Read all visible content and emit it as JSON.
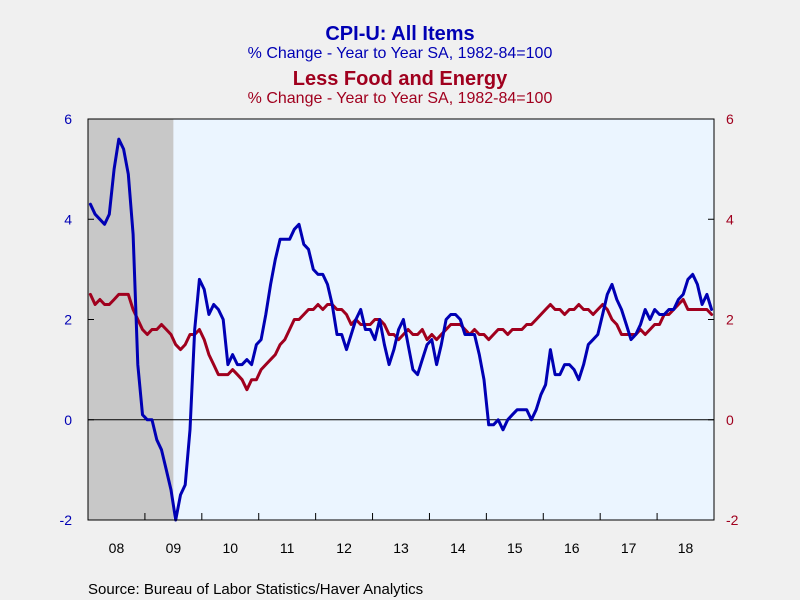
{
  "chart_data": {
    "type": "line",
    "titles": [
      {
        "text": "CPI-U: All Items",
        "color": "#0000b4"
      },
      {
        "text": "% Change - Year to Year    SA, 1982-84=100",
        "color": "#0000b4"
      },
      {
        "text": "Less Food and Energy",
        "color": "#a0001e"
      },
      {
        "text": "% Change - Year to Year    SA, 1982-84=100",
        "color": "#a0001e"
      }
    ],
    "ylim": [
      -2,
      6
    ],
    "y_ticks": [
      "-2",
      "0",
      "2",
      "4",
      "6"
    ],
    "y_ticks_right": [
      "-2",
      "0",
      "2",
      "4",
      "6"
    ],
    "x_labels": [
      "08",
      "09",
      "10",
      "11",
      "12",
      "13",
      "14",
      "15",
      "16",
      "17",
      "18"
    ],
    "x_range": [
      "2008-01",
      "2018-12"
    ],
    "recession_shading": {
      "start": "2008-01",
      "end": "2009-06",
      "color": "#c8c8c8"
    },
    "plot_background": "#ebf5ff",
    "grid": false,
    "zero_line": true,
    "series": [
      {
        "color": "#0000b4",
        "start": "2008-01",
        "values": [
          4.3,
          4.1,
          4.0,
          3.9,
          4.1,
          5.0,
          5.6,
          5.4,
          4.9,
          3.7,
          1.1,
          0.1,
          0.0,
          0.0,
          -0.4,
          -0.6,
          -1.0,
          -1.4,
          -2.0,
          -1.5,
          -1.3,
          -0.2,
          1.8,
          2.8,
          2.6,
          2.1,
          2.3,
          2.2,
          2.0,
          1.1,
          1.3,
          1.1,
          1.1,
          1.2,
          1.1,
          1.5,
          1.6,
          2.1,
          2.7,
          3.2,
          3.6,
          3.6,
          3.6,
          3.8,
          3.9,
          3.5,
          3.4,
          3.0,
          2.9,
          2.9,
          2.7,
          2.3,
          1.7,
          1.7,
          1.4,
          1.7,
          2.0,
          2.2,
          1.8,
          1.8,
          1.6,
          2.0,
          1.5,
          1.1,
          1.4,
          1.8,
          2.0,
          1.5,
          1.0,
          0.9,
          1.2,
          1.5,
          1.6,
          1.1,
          1.5,
          2.0,
          2.1,
          2.1,
          2.0,
          1.7,
          1.7,
          1.7,
          1.3,
          0.8,
          -0.1,
          -0.1,
          0.0,
          -0.2,
          0.0,
          0.1,
          0.2,
          0.2,
          0.2,
          0.0,
          0.2,
          0.5,
          0.7,
          1.4,
          0.9,
          0.9,
          1.1,
          1.1,
          1.0,
          0.8,
          1.1,
          1.5,
          1.6,
          1.7,
          2.1,
          2.5,
          2.7,
          2.4,
          2.2,
          1.9,
          1.6,
          1.7,
          1.9,
          2.2,
          2.0,
          2.2,
          2.1,
          2.1,
          2.2,
          2.2,
          2.4,
          2.5,
          2.8,
          2.9,
          2.7,
          2.3,
          2.5,
          2.2
        ]
      },
      {
        "color": "#a0001e",
        "start": "2008-01",
        "values": [
          2.5,
          2.3,
          2.4,
          2.3,
          2.3,
          2.4,
          2.5,
          2.5,
          2.5,
          2.2,
          2.0,
          1.8,
          1.7,
          1.8,
          1.8,
          1.9,
          1.8,
          1.7,
          1.5,
          1.4,
          1.5,
          1.7,
          1.7,
          1.8,
          1.6,
          1.3,
          1.1,
          0.9,
          0.9,
          0.9,
          1.0,
          0.9,
          0.8,
          0.6,
          0.8,
          0.8,
          1.0,
          1.1,
          1.2,
          1.3,
          1.5,
          1.6,
          1.8,
          2.0,
          2.0,
          2.1,
          2.2,
          2.2,
          2.3,
          2.2,
          2.3,
          2.3,
          2.2,
          2.2,
          2.1,
          1.9,
          2.0,
          1.9,
          1.9,
          1.9,
          2.0,
          2.0,
          1.9,
          1.7,
          1.7,
          1.6,
          1.7,
          1.8,
          1.7,
          1.7,
          1.8,
          1.6,
          1.7,
          1.6,
          1.7,
          1.8,
          1.9,
          1.9,
          1.9,
          1.8,
          1.7,
          1.8,
          1.7,
          1.7,
          1.6,
          1.7,
          1.8,
          1.8,
          1.7,
          1.8,
          1.8,
          1.8,
          1.9,
          1.9,
          2.0,
          2.1,
          2.2,
          2.3,
          2.2,
          2.2,
          2.1,
          2.2,
          2.2,
          2.3,
          2.2,
          2.2,
          2.1,
          2.2,
          2.3,
          2.2,
          2.0,
          1.9,
          1.7,
          1.7,
          1.7,
          1.7,
          1.8,
          1.7,
          1.8,
          1.9,
          1.9,
          2.1,
          2.1,
          2.2,
          2.3,
          2.4,
          2.2,
          2.2,
          2.2,
          2.2,
          2.2,
          2.1
        ]
      }
    ]
  },
  "source": "Source:  Bureau of Labor Statistics/Haver Analytics"
}
